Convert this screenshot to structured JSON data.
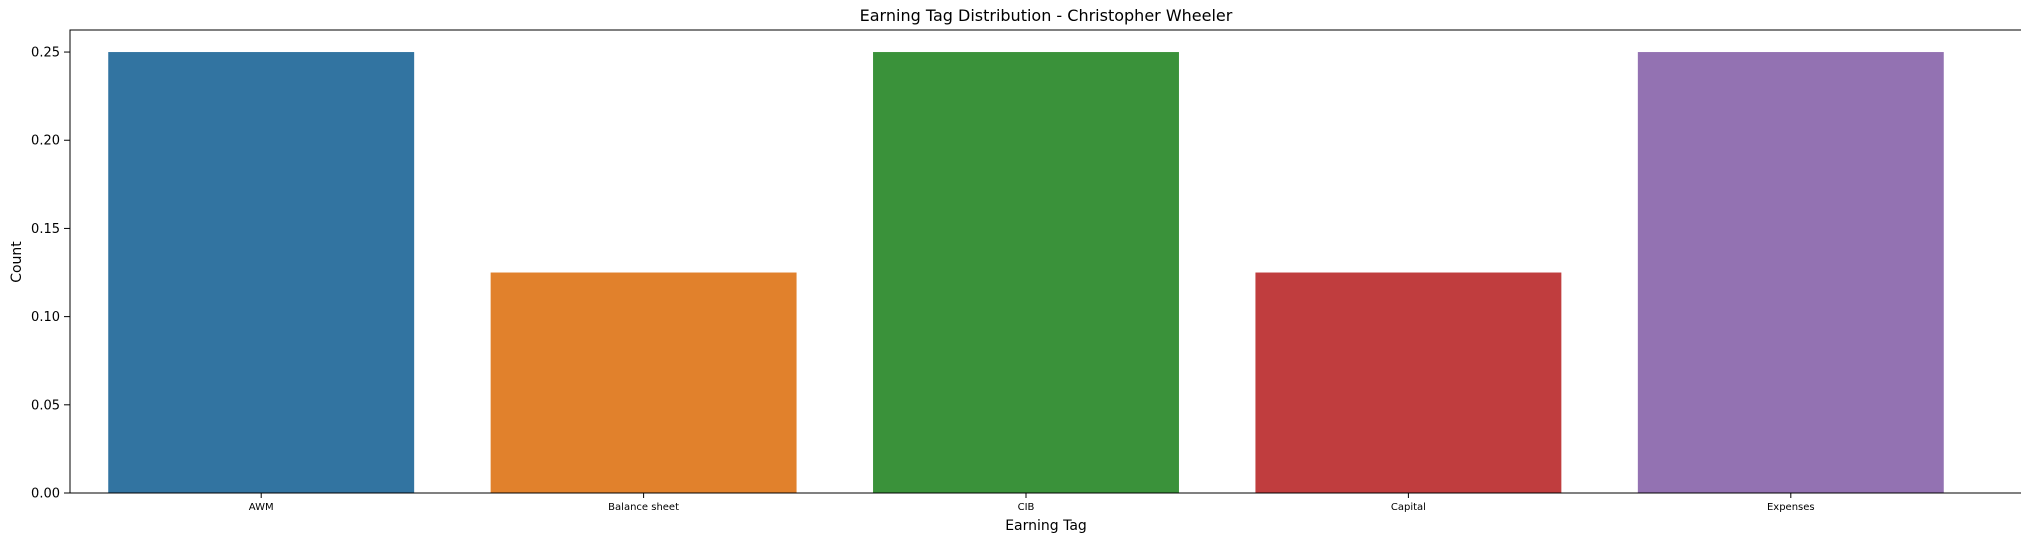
{
  "chart_data": {
    "type": "bar",
    "title": "Earning Tag Distribution - Christopher Wheeler",
    "xlabel": "Earning Tag",
    "ylabel": "Count",
    "categories": [
      "AWM",
      "Balance sheet",
      "CIB",
      "Capital",
      "Expenses"
    ],
    "values": [
      0.25,
      0.125,
      0.25,
      0.125,
      0.25
    ],
    "colors": [
      "#3274a1",
      "#e1812c",
      "#3a923a",
      "#c03d3e",
      "#9372b2"
    ],
    "ylim": [
      0,
      0.2625
    ],
    "yticks": [
      0.0,
      0.05,
      0.1,
      0.15,
      0.2,
      0.25
    ],
    "ytick_labels": [
      "0.00",
      "0.05",
      "0.10",
      "0.15",
      "0.20",
      "0.25"
    ],
    "grid": false,
    "legend": "none"
  }
}
